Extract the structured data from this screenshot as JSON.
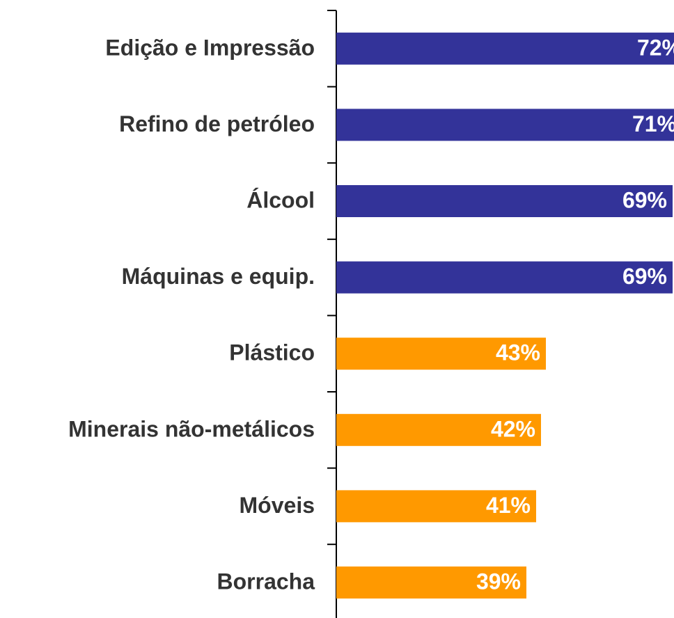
{
  "chart_data": {
    "type": "bar",
    "orientation": "horizontal",
    "categories": [
      "Edição e Impressão",
      "Refino de petróleo",
      "Álcool",
      "Máquinas e equip.",
      "Plástico",
      "Minerais não-metálicos",
      "Móveis",
      "Borracha"
    ],
    "values": [
      72,
      71,
      69,
      69,
      43,
      42,
      41,
      39
    ],
    "value_labels": [
      "72%",
      "71%",
      "69%",
      "69%",
      "43%",
      "42%",
      "41%",
      "39%"
    ],
    "colors": [
      "#333399",
      "#333399",
      "#333399",
      "#333399",
      "#ff9900",
      "#ff9900",
      "#ff9900",
      "#ff9900"
    ]
  }
}
